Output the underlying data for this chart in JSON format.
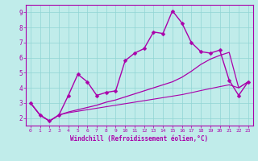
{
  "title": "",
  "xlabel": "Windchill (Refroidissement éolien,°C)",
  "ylabel": "",
  "background_color": "#c0ecea",
  "line_color": "#aa00aa",
  "xlim": [
    -0.5,
    23.5
  ],
  "ylim": [
    1.5,
    9.5
  ],
  "yticks": [
    2,
    3,
    4,
    5,
    6,
    7,
    8,
    9
  ],
  "xticks": [
    0,
    1,
    2,
    3,
    4,
    5,
    6,
    7,
    8,
    9,
    10,
    11,
    12,
    13,
    14,
    15,
    16,
    17,
    18,
    19,
    20,
    21,
    22,
    23
  ],
  "grid_color": "#90d4d4",
  "series": [
    {
      "x": [
        0,
        1,
        2,
        3,
        4,
        5,
        6,
        7,
        8,
        9,
        10,
        11,
        12,
        13,
        14,
        15,
        16,
        17,
        18,
        19,
        20,
        21,
        22,
        23
      ],
      "y": [
        3.0,
        2.2,
        1.8,
        2.2,
        3.5,
        4.9,
        4.4,
        3.5,
        3.7,
        3.8,
        5.8,
        6.3,
        6.6,
        7.7,
        7.6,
        9.1,
        8.3,
        7.0,
        6.4,
        6.3,
        6.5,
        4.5,
        3.5,
        4.4
      ],
      "marker": "D",
      "marker_size": 2.5,
      "linewidth": 1.0,
      "has_marker": true
    },
    {
      "x": [
        0,
        1,
        2,
        3,
        4,
        5,
        6,
        7,
        8,
        9,
        10,
        11,
        12,
        13,
        14,
        15,
        16,
        17,
        18,
        19,
        20,
        21,
        22,
        23
      ],
      "y": [
        3.0,
        2.2,
        1.8,
        2.2,
        2.4,
        2.55,
        2.7,
        2.85,
        3.05,
        3.2,
        3.4,
        3.6,
        3.8,
        4.0,
        4.2,
        4.4,
        4.7,
        5.1,
        5.55,
        5.9,
        6.15,
        6.35,
        4.0,
        4.4
      ],
      "marker": null,
      "marker_size": 0,
      "linewidth": 0.9,
      "has_marker": false
    },
    {
      "x": [
        0,
        1,
        2,
        3,
        4,
        5,
        6,
        7,
        8,
        9,
        10,
        11,
        12,
        13,
        14,
        15,
        16,
        17,
        18,
        19,
        20,
        21,
        22,
        23
      ],
      "y": [
        3.0,
        2.2,
        1.8,
        2.2,
        2.35,
        2.45,
        2.55,
        2.65,
        2.75,
        2.85,
        2.95,
        3.05,
        3.15,
        3.25,
        3.35,
        3.45,
        3.55,
        3.68,
        3.82,
        3.95,
        4.08,
        4.2,
        4.0,
        4.4
      ],
      "marker": null,
      "marker_size": 0,
      "linewidth": 0.8,
      "has_marker": false
    }
  ]
}
